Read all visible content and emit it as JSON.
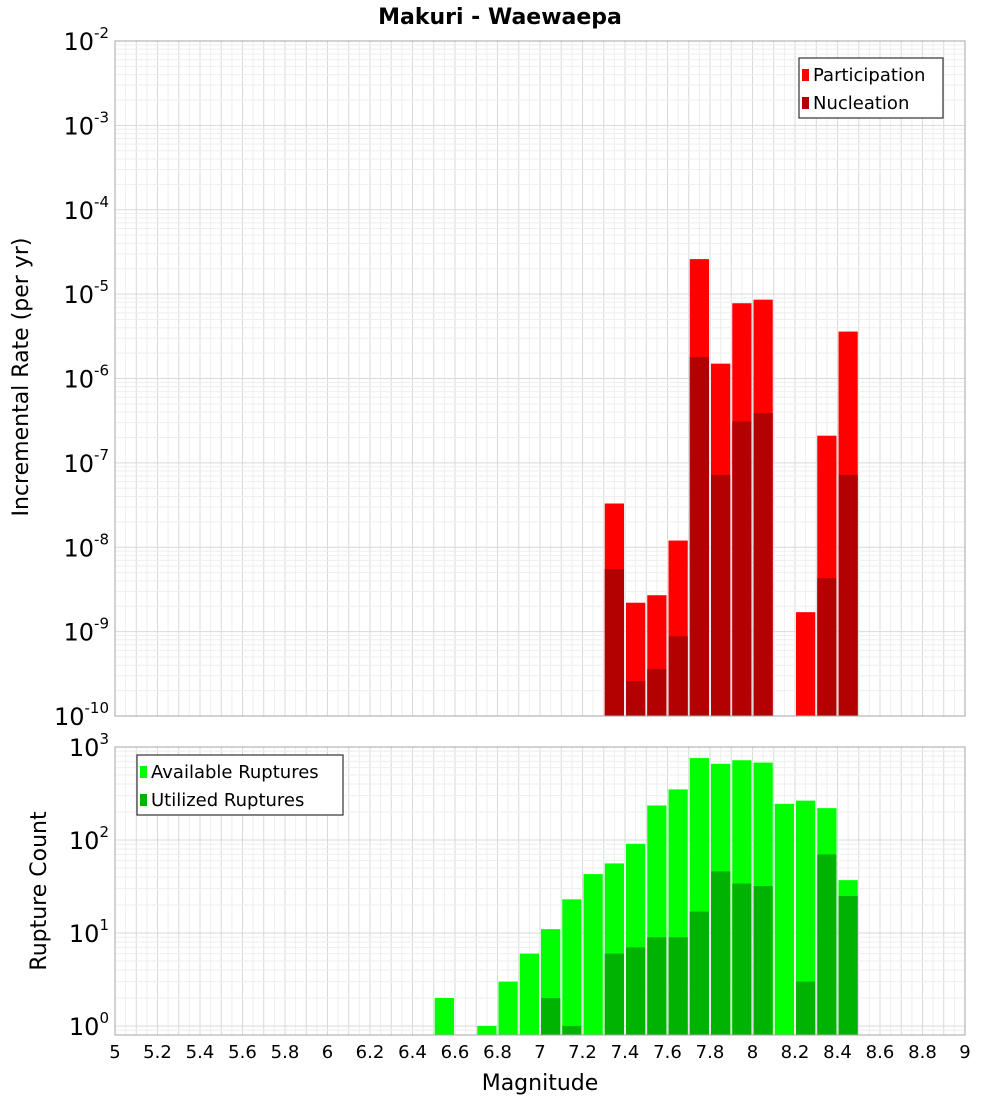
{
  "chart_data": [
    {
      "type": "bar",
      "title": "Makuri - Waewaepa",
      "xlabel": "Magnitude",
      "ylabel": "Incremental Rate (per yr)",
      "yscale": "log",
      "ylim": [
        1e-10,
        0.01
      ],
      "xlim": [
        5,
        9
      ],
      "x_ticks": [
        "5",
        "5.2",
        "5.4",
        "5.6",
        "5.8",
        "6",
        "6.2",
        "6.4",
        "6.6",
        "6.8",
        "7",
        "7.2",
        "7.4",
        "7.6",
        "7.8",
        "8",
        "8.2",
        "8.4",
        "8.6",
        "8.8",
        "9"
      ],
      "y_ticks": [
        {
          "base": "10",
          "exp": "-10"
        },
        {
          "base": "10",
          "exp": "-9"
        },
        {
          "base": "10",
          "exp": "-8"
        },
        {
          "base": "10",
          "exp": "-7"
        },
        {
          "base": "10",
          "exp": "-6"
        },
        {
          "base": "10",
          "exp": "-5"
        },
        {
          "base": "10",
          "exp": "-4"
        },
        {
          "base": "10",
          "exp": "-3"
        },
        {
          "base": "10",
          "exp": "-2"
        }
      ],
      "grid": true,
      "legend_position": "top-right",
      "series": [
        {
          "name": "Participation",
          "color": "#ff0000",
          "x": [
            7.35,
            7.45,
            7.55,
            7.65,
            7.75,
            7.85,
            7.95,
            8.05,
            8.25,
            8.35,
            8.45
          ],
          "values": [
            3.3e-08,
            2.2e-09,
            2.7e-09,
            1.2e-08,
            2.6e-05,
            1.5e-06,
            7.8e-06,
            8.6e-06,
            1.7e-09,
            2.1e-07,
            3.6e-06
          ]
        },
        {
          "name": "Nucleation",
          "color": "#b30000",
          "x": [
            7.35,
            7.45,
            7.55,
            7.65,
            7.75,
            7.85,
            7.95,
            8.05,
            8.35,
            8.45
          ],
          "values": [
            5.5e-09,
            2.6e-10,
            3.6e-10,
            8.8e-10,
            1.8e-06,
            7.2e-08,
            3.1e-07,
            3.9e-07,
            4.3e-09,
            7.2e-08
          ]
        }
      ]
    },
    {
      "type": "bar",
      "xlabel": "Magnitude",
      "ylabel": "Rupture Count",
      "yscale": "log",
      "ylim": [
        0.8,
        1000
      ],
      "xlim": [
        5,
        9
      ],
      "x_ticks": [
        "5",
        "5.2",
        "5.4",
        "5.6",
        "5.8",
        "6",
        "6.2",
        "6.4",
        "6.6",
        "6.8",
        "7",
        "7.2",
        "7.4",
        "7.6",
        "7.8",
        "8",
        "8.2",
        "8.4",
        "8.6",
        "8.8",
        "9"
      ],
      "y_ticks": [
        {
          "base": "10",
          "exp": "0"
        },
        {
          "base": "10",
          "exp": "1"
        },
        {
          "base": "10",
          "exp": "2"
        },
        {
          "base": "10",
          "exp": "3"
        }
      ],
      "grid": true,
      "legend_position": "top-left",
      "series": [
        {
          "name": "Available Ruptures",
          "color": "#00ff00",
          "x": [
            6.55,
            6.75,
            6.85,
            6.95,
            7.05,
            7.15,
            7.25,
            7.35,
            7.45,
            7.55,
            7.65,
            7.75,
            7.85,
            7.95,
            8.05,
            8.15,
            8.25,
            8.35,
            8.45
          ],
          "values": [
            2,
            1,
            3,
            6,
            11,
            23,
            43,
            56,
            91,
            235,
            350,
            760,
            660,
            720,
            680,
            245,
            265,
            220,
            37
          ]
        },
        {
          "name": "Utilized Ruptures",
          "color": "#00b300",
          "x": [
            7.05,
            7.15,
            7.35,
            7.45,
            7.55,
            7.65,
            7.75,
            7.85,
            7.95,
            8.05,
            8.25,
            8.35,
            8.45
          ],
          "values": [
            2,
            1,
            6,
            7,
            9,
            9,
            17,
            46,
            34,
            32,
            3,
            70,
            25
          ]
        }
      ]
    }
  ]
}
